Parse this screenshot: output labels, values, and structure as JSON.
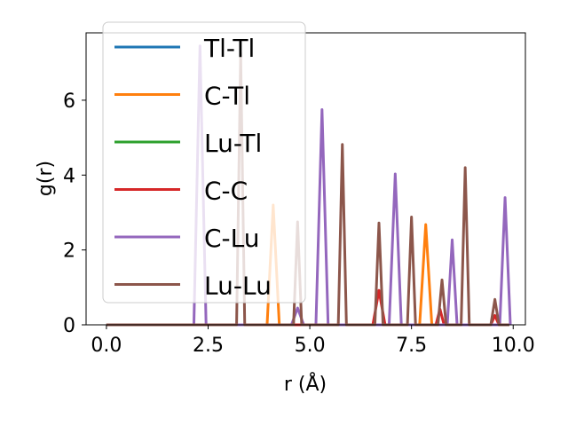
{
  "chart_data": {
    "type": "line",
    "xlabel": "r (Å)",
    "ylabel": "g(r)",
    "xlim": [
      -0.5,
      10.3
    ],
    "ylim": [
      0,
      7.8
    ],
    "xticks": [
      "0.0",
      "2.5",
      "5.0",
      "7.5",
      "10.0"
    ],
    "xtick_values": [
      0.0,
      2.5,
      5.0,
      7.5,
      10.0
    ],
    "yticks": [
      "0",
      "2",
      "4",
      "6"
    ],
    "ytick_values": [
      0,
      2,
      4,
      6
    ],
    "legend_position": "top-left",
    "series": [
      {
        "name": "Tl-Tl",
        "color": "#1f77b4",
        "points": [
          [
            0,
            0
          ],
          [
            9.9,
            0
          ]
        ]
      },
      {
        "name": "C-Tl",
        "color": "#ff7f0e",
        "points": [
          [
            0,
            0
          ],
          [
            3.95,
            0
          ],
          [
            4.1,
            3.2
          ],
          [
            4.25,
            0
          ],
          [
            7.7,
            0
          ],
          [
            7.85,
            2.68
          ],
          [
            8.0,
            0
          ],
          [
            9.9,
            0
          ]
        ]
      },
      {
        "name": "Lu-Tl",
        "color": "#2ca02c",
        "points": [
          [
            0,
            0
          ],
          [
            9.9,
            0
          ]
        ]
      },
      {
        "name": "C-C",
        "color": "#d62728",
        "points": [
          [
            0,
            0
          ],
          [
            6.55,
            0
          ],
          [
            6.7,
            0.92
          ],
          [
            6.85,
            0
          ],
          [
            8.1,
            0
          ],
          [
            8.2,
            0.42
          ],
          [
            8.3,
            0
          ],
          [
            9.45,
            0
          ],
          [
            9.55,
            0.25
          ],
          [
            9.65,
            0
          ],
          [
            9.9,
            0
          ]
        ]
      },
      {
        "name": "C-Lu",
        "color": "#9467bd",
        "points": [
          [
            0,
            0
          ],
          [
            2.15,
            0
          ],
          [
            2.3,
            7.45
          ],
          [
            2.45,
            0
          ],
          [
            4.55,
            0
          ],
          [
            4.7,
            0.45
          ],
          [
            4.85,
            0
          ],
          [
            5.15,
            0
          ],
          [
            5.3,
            5.75
          ],
          [
            5.45,
            0
          ],
          [
            6.95,
            0
          ],
          [
            7.1,
            4.03
          ],
          [
            7.25,
            0
          ],
          [
            8.38,
            0
          ],
          [
            8.5,
            2.27
          ],
          [
            8.62,
            0
          ],
          [
            9.67,
            0
          ],
          [
            9.8,
            3.4
          ],
          [
            9.93,
            0
          ]
        ]
      },
      {
        "name": "Lu-Lu",
        "color": "#8c564b",
        "points": [
          [
            0,
            0
          ],
          [
            3.2,
            0
          ],
          [
            3.3,
            7.25
          ],
          [
            3.4,
            0
          ],
          [
            4.6,
            0
          ],
          [
            4.7,
            2.75
          ],
          [
            4.8,
            0
          ],
          [
            5.7,
            0
          ],
          [
            5.8,
            4.82
          ],
          [
            5.9,
            0
          ],
          [
            6.6,
            0
          ],
          [
            6.7,
            2.72
          ],
          [
            6.8,
            0
          ],
          [
            7.4,
            0
          ],
          [
            7.5,
            2.88
          ],
          [
            7.6,
            0
          ],
          [
            8.15,
            0
          ],
          [
            8.25,
            1.2
          ],
          [
            8.35,
            0
          ],
          [
            8.72,
            0
          ],
          [
            8.82,
            4.2
          ],
          [
            8.92,
            0
          ],
          [
            9.45,
            0
          ],
          [
            9.55,
            0.68
          ],
          [
            9.65,
            0
          ],
          [
            9.9,
            0
          ]
        ]
      }
    ]
  }
}
